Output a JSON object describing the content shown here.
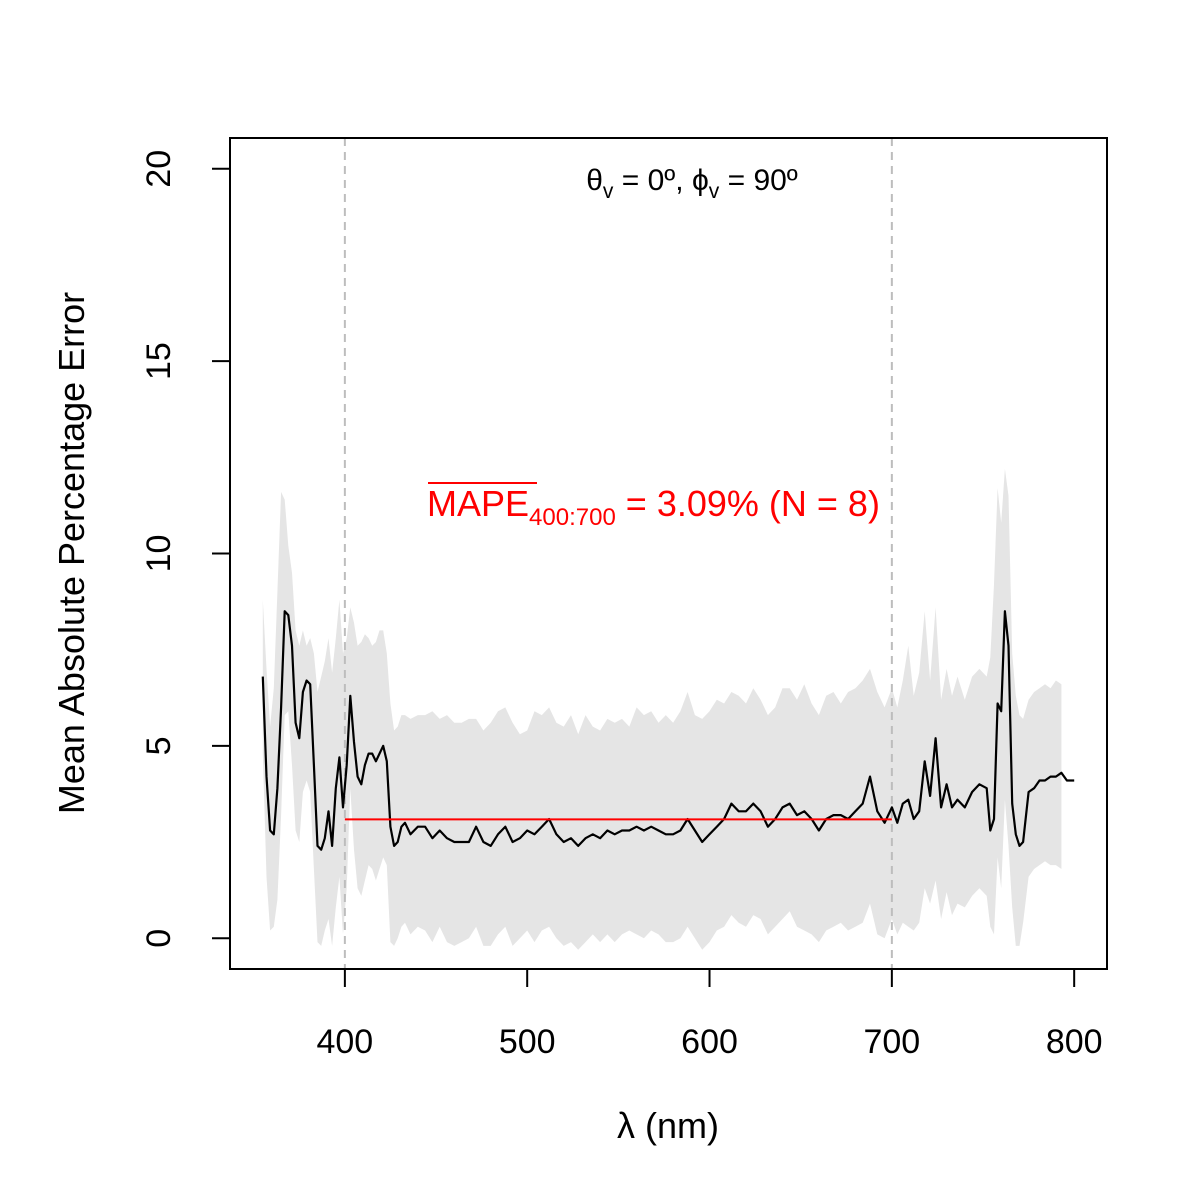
{
  "chart_data": {
    "type": "line",
    "title": "",
    "xlabel": "λ (nm)",
    "ylabel": "Mean Absolute Percentage Error",
    "xlim": [
      337,
      818
    ],
    "ylim": [
      -0.8,
      20.8
    ],
    "x_ticks": [
      400,
      500,
      600,
      700,
      800
    ],
    "y_ticks": [
      0,
      5,
      10,
      15,
      20
    ],
    "grid": false,
    "vlines": [
      400,
      700
    ],
    "annotation": {
      "theta_symbol": "θ",
      "theta_sub": "v",
      "theta_value": " = 0º, ",
      "phi_symbol": "ϕ",
      "phi_sub": "v",
      "phi_value": " = 90º"
    },
    "mape_label": {
      "main": "MAPE",
      "sub": "400:700",
      "rest": " = 3.09% (N = 8)",
      "value": 3.09,
      "range": [
        400,
        700
      ]
    },
    "colors": {
      "line": "#000000",
      "band": "#e5e5e5",
      "mape": "#ff0000",
      "vline": "#bdbdbd"
    },
    "series": [
      {
        "x": [
          355,
          357,
          359,
          361,
          363,
          365,
          367,
          369,
          371,
          373,
          375,
          377,
          379,
          381,
          383,
          385,
          387,
          389,
          391,
          393,
          395,
          397,
          399,
          401,
          403,
          405,
          407,
          409,
          411,
          413,
          415,
          417,
          419,
          421,
          423,
          425,
          427,
          429,
          431,
          433,
          436,
          440,
          444,
          448,
          452,
          456,
          460,
          464,
          468,
          472,
          476,
          480,
          484,
          488,
          492,
          496,
          500,
          504,
          508,
          512,
          516,
          520,
          524,
          528,
          532,
          536,
          540,
          544,
          548,
          552,
          556,
          560,
          564,
          568,
          572,
          576,
          580,
          584,
          588,
          592,
          596,
          600,
          604,
          608,
          612,
          616,
          620,
          624,
          628,
          632,
          636,
          640,
          644,
          648,
          652,
          656,
          660,
          664,
          668,
          672,
          676,
          680,
          684,
          688,
          692,
          696,
          700,
          703,
          706,
          709,
          712,
          715,
          718,
          721,
          724,
          727,
          730,
          733,
          736,
          740,
          744,
          748,
          752,
          754,
          756,
          758,
          760,
          762,
          764,
          766,
          768,
          770,
          772,
          775,
          778,
          781,
          784,
          787,
          790,
          793,
          796,
          800
        ],
        "y": [
          6.8,
          4.2,
          2.8,
          2.7,
          3.9,
          6.0,
          8.5,
          8.4,
          7.6,
          5.6,
          5.2,
          6.4,
          6.7,
          6.6,
          4.5,
          2.4,
          2.3,
          2.6,
          3.3,
          2.4,
          3.9,
          4.7,
          3.4,
          4.5,
          6.3,
          5.1,
          4.2,
          4.0,
          4.5,
          4.8,
          4.8,
          4.6,
          4.8,
          5.0,
          4.6,
          2.9,
          2.4,
          2.5,
          2.9,
          3.0,
          2.7,
          2.9,
          2.9,
          2.6,
          2.8,
          2.6,
          2.5,
          2.5,
          2.5,
          2.9,
          2.5,
          2.4,
          2.7,
          2.9,
          2.5,
          2.6,
          2.8,
          2.7,
          2.9,
          3.1,
          2.7,
          2.5,
          2.6,
          2.4,
          2.6,
          2.7,
          2.6,
          2.8,
          2.7,
          2.8,
          2.8,
          2.9,
          2.8,
          2.9,
          2.8,
          2.7,
          2.7,
          2.8,
          3.1,
          2.8,
          2.5,
          2.7,
          2.9,
          3.1,
          3.5,
          3.3,
          3.3,
          3.5,
          3.3,
          2.9,
          3.1,
          3.4,
          3.5,
          3.2,
          3.3,
          3.1,
          2.8,
          3.1,
          3.2,
          3.2,
          3.1,
          3.3,
          3.5,
          4.2,
          3.3,
          3.0,
          3.4,
          3.0,
          3.5,
          3.6,
          3.1,
          3.3,
          4.6,
          3.7,
          5.2,
          3.4,
          4.0,
          3.4,
          3.6,
          3.4,
          3.8,
          4.0,
          3.9,
          2.8,
          3.1,
          6.1,
          5.9,
          8.5,
          7.6,
          3.5,
          2.7,
          2.4,
          2.5,
          3.8,
          3.9,
          4.1,
          4.1,
          4.2,
          4.2,
          4.3,
          4.1,
          4.1
        ]
      }
    ],
    "band": {
      "x": [
        355,
        357,
        359,
        361,
        363,
        365,
        367,
        369,
        371,
        373,
        375,
        377,
        379,
        381,
        383,
        385,
        387,
        389,
        391,
        393,
        395,
        397,
        399,
        401,
        403,
        405,
        407,
        409,
        411,
        413,
        415,
        417,
        419,
        421,
        423,
        425,
        427,
        429,
        431,
        433,
        436,
        440,
        444,
        448,
        452,
        456,
        460,
        464,
        468,
        472,
        476,
        480,
        484,
        488,
        492,
        496,
        500,
        504,
        508,
        512,
        516,
        520,
        524,
        528,
        532,
        536,
        540,
        544,
        548,
        552,
        556,
        560,
        564,
        568,
        572,
        576,
        580,
        584,
        588,
        592,
        596,
        600,
        604,
        608,
        612,
        616,
        620,
        624,
        628,
        632,
        636,
        640,
        644,
        648,
        652,
        656,
        660,
        664,
        668,
        672,
        676,
        680,
        684,
        688,
        692,
        696,
        700,
        703,
        706,
        709,
        712,
        715,
        718,
        721,
        724,
        727,
        730,
        733,
        736,
        740,
        744,
        748,
        752,
        754,
        756,
        758,
        760,
        762,
        764,
        766,
        768,
        770,
        772,
        775,
        778,
        781,
        784,
        787,
        790,
        793
      ],
      "upper": [
        8.8,
        7.0,
        5.5,
        6.5,
        9.0,
        11.6,
        11.4,
        10.2,
        9.5,
        8.0,
        7.6,
        8.0,
        7.6,
        7.8,
        7.4,
        6.4,
        6.8,
        7.2,
        7.8,
        6.9,
        7.8,
        8.8,
        7.4,
        7.8,
        8.6,
        8.2,
        7.6,
        7.7,
        7.9,
        7.8,
        7.6,
        7.7,
        8.0,
        8.0,
        7.4,
        6.1,
        5.4,
        5.5,
        5.8,
        5.8,
        5.7,
        5.8,
        5.8,
        5.9,
        5.7,
        5.8,
        5.6,
        5.6,
        5.7,
        5.7,
        5.4,
        5.6,
        5.9,
        6.0,
        5.6,
        5.3,
        5.4,
        5.9,
        5.8,
        6.0,
        5.6,
        5.5,
        5.8,
        5.3,
        5.8,
        5.5,
        5.4,
        5.7,
        5.6,
        5.7,
        5.5,
        6.0,
        5.8,
        5.9,
        5.6,
        5.8,
        5.6,
        5.9,
        6.4,
        5.8,
        5.7,
        5.9,
        6.2,
        6.1,
        6.4,
        6.3,
        6.1,
        6.5,
        6.2,
        5.8,
        6.0,
        6.5,
        6.5,
        6.2,
        6.6,
        6.1,
        5.8,
        6.3,
        6.4,
        6.1,
        6.4,
        6.5,
        6.7,
        7.0,
        6.4,
        6.0,
        6.5,
        6.0,
        6.7,
        7.6,
        6.3,
        6.9,
        8.5,
        6.7,
        8.6,
        6.2,
        7.0,
        6.3,
        6.8,
        6.2,
        6.8,
        7.0,
        6.8,
        7.3,
        9.2,
        11.7,
        10.8,
        12.2,
        11.5,
        7.4,
        6.3,
        5.8,
        5.7,
        6.2,
        6.4,
        6.5,
        6.6,
        6.5,
        6.7,
        6.6
      ],
      "lower": [
        4.8,
        1.6,
        0.2,
        0.3,
        1.0,
        3.2,
        5.8,
        5.9,
        4.5,
        2.8,
        2.5,
        3.8,
        4.1,
        3.8,
        1.8,
        -0.1,
        -0.2,
        0.2,
        0.5,
        -0.2,
        0.8,
        1.6,
        0.1,
        1.3,
        3.9,
        2.3,
        1.3,
        1.1,
        1.5,
        1.9,
        1.8,
        1.5,
        1.8,
        2.1,
        1.9,
        -0.1,
        -0.2,
        0.0,
        0.3,
        0.4,
        0.1,
        0.3,
        0.2,
        -0.1,
        0.3,
        -0.1,
        -0.2,
        -0.1,
        0.0,
        0.3,
        -0.2,
        -0.2,
        0.1,
        0.3,
        -0.2,
        0.0,
        0.2,
        -0.1,
        0.2,
        0.3,
        0.0,
        -0.2,
        -0.1,
        -0.3,
        -0.1,
        0.1,
        -0.1,
        0.1,
        -0.1,
        0.1,
        0.2,
        0.1,
        0.0,
        0.2,
        0.1,
        -0.1,
        -0.1,
        0.0,
        0.3,
        0.0,
        -0.3,
        -0.1,
        0.2,
        0.3,
        0.6,
        0.4,
        0.3,
        0.6,
        0.5,
        0.1,
        0.3,
        0.5,
        0.7,
        0.3,
        0.2,
        0.1,
        -0.1,
        0.2,
        0.3,
        0.4,
        0.2,
        0.3,
        0.4,
        0.9,
        0.1,
        0.0,
        0.5,
        0.1,
        0.4,
        0.3,
        0.2,
        0.4,
        1.3,
        0.9,
        1.5,
        0.5,
        1.2,
        0.6,
        0.9,
        0.8,
        1.1,
        1.3,
        1.1,
        0.3,
        0.1,
        2.1,
        1.3,
        3.6,
        2.4,
        0.8,
        -0.2,
        -0.2,
        0.4,
        1.6,
        1.8,
        1.9,
        2.0,
        1.9,
        1.9,
        1.8
      ]
    }
  }
}
